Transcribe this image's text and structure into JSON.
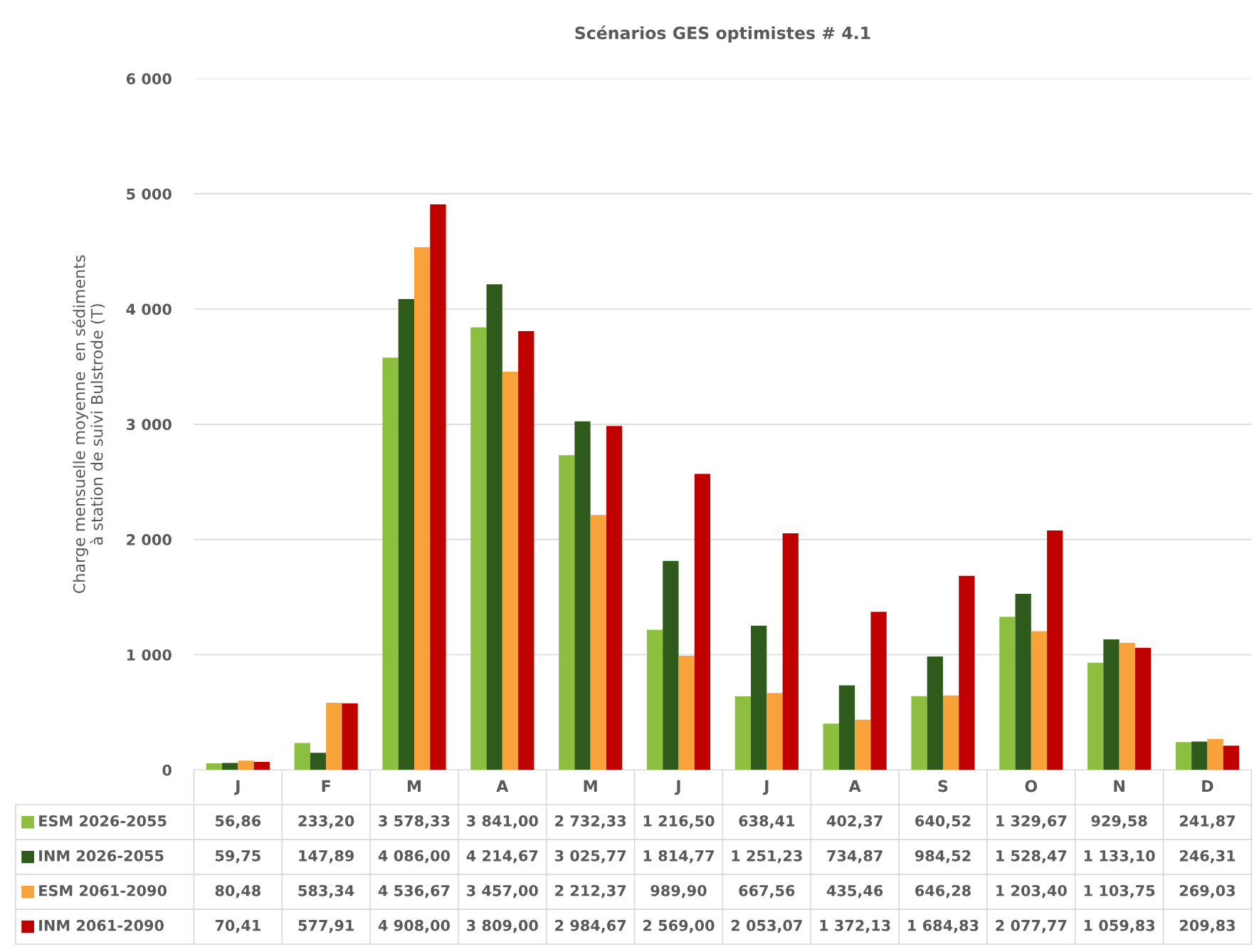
{
  "chart_data": {
    "type": "bar",
    "title": "Scénarios GES optimistes # 4.1",
    "ylabel": "Charge mensuelle moyenne  en sédiments\nà station de suivi Bulstrode (T)",
    "categories": [
      "J",
      "F",
      "M",
      "A",
      "M",
      "J",
      "J",
      "A",
      "S",
      "O",
      "N",
      "D"
    ],
    "series": [
      {
        "name": "ESM 2026-2055",
        "color": "#8cbf3f",
        "values": [
          56.86,
          233.2,
          3578.33,
          3841.0,
          2732.33,
          1216.5,
          638.41,
          402.37,
          640.52,
          1329.67,
          929.58,
          241.87
        ],
        "value_labels": [
          "56,86",
          "233,20",
          "3 578,33",
          "3 841,00",
          "2 732,33",
          "1 216,50",
          "638,41",
          "402,37",
          "640,52",
          "1 329,67",
          "929,58",
          "241,87"
        ]
      },
      {
        "name": "INM 2026-2055",
        "color": "#2e5a1c",
        "values": [
          59.75,
          147.89,
          4086.0,
          4214.67,
          3025.77,
          1814.77,
          1251.23,
          734.87,
          984.52,
          1528.47,
          1133.1,
          246.31
        ],
        "value_labels": [
          "59,75",
          "147,89",
          "4 086,00",
          "4 214,67",
          "3 025,77",
          "1 814,77",
          "1 251,23",
          "734,87",
          "984,52",
          "1 528,47",
          "1 133,10",
          "246,31"
        ]
      },
      {
        "name": "ESM 2061-2090",
        "color": "#f7a23b",
        "values": [
          80.48,
          583.34,
          4536.67,
          3457.0,
          2212.37,
          989.9,
          667.56,
          435.46,
          646.28,
          1203.4,
          1103.75,
          269.03
        ],
        "value_labels": [
          "80,48",
          "583,34",
          "4 536,67",
          "3 457,00",
          "2 212,37",
          "989,90",
          "667,56",
          "435,46",
          "646,28",
          "1 203,40",
          "1 103,75",
          "269,03"
        ]
      },
      {
        "name": "INM 2061-2090",
        "color": "#c00000",
        "values": [
          70.41,
          577.91,
          4908.0,
          3809.0,
          2984.67,
          2569.0,
          2053.07,
          1372.13,
          1684.83,
          2077.77,
          1059.83,
          209.83
        ],
        "value_labels": [
          "70,41",
          "577,91",
          "4 908,00",
          "3 809,00",
          "2 984,67",
          "2 569,00",
          "2 053,07",
          "1 372,13",
          "1 684,83",
          "2 077,77",
          "1 059,83",
          "209,83"
        ]
      }
    ],
    "ylim": [
      0,
      6000
    ],
    "yticks": [
      {
        "value": 0,
        "label": "0"
      },
      {
        "value": 1000,
        "label": "1 000"
      },
      {
        "value": 2000,
        "label": "2 000"
      },
      {
        "value": 3000,
        "label": "3 000"
      },
      {
        "value": 4000,
        "label": "4 000"
      },
      {
        "value": 5000,
        "label": "5 000"
      },
      {
        "value": 6000,
        "label": "6 000"
      }
    ],
    "grid": "y",
    "legend": "bottom"
  }
}
